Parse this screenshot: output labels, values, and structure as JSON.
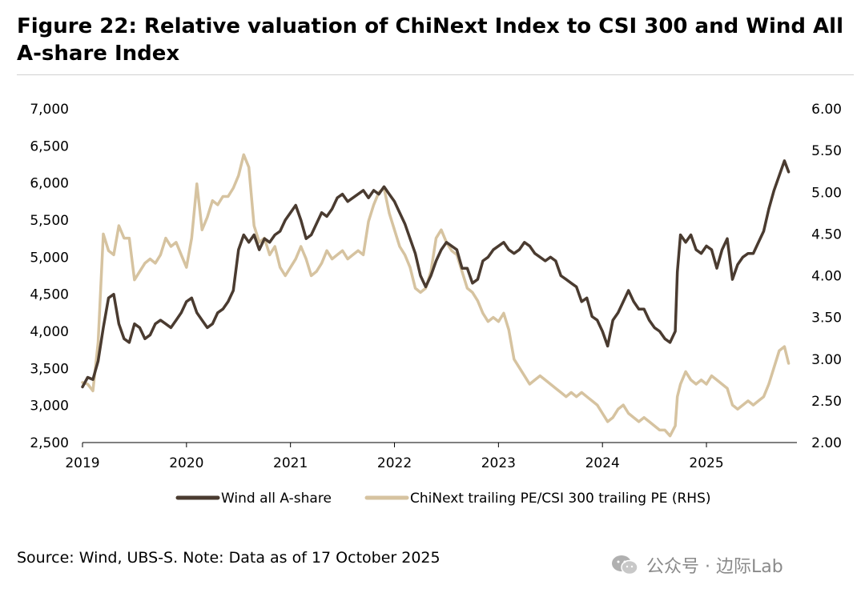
{
  "page": {
    "title": "Figure 22: Relative valuation of ChiNext Index to CSI 300 and Wind All A-share Index",
    "source": "Source: Wind, UBS-S. Note: Data as of 17 October 2025",
    "watermark": "公众号 · 边际Lab"
  },
  "chart_data": {
    "type": "line",
    "title": "Figure 22: Relative valuation of ChiNext Index to CSI 300 and Wind All A-share Index",
    "x_ticks": [
      "2019",
      "2020",
      "2021",
      "2022",
      "2023",
      "2024",
      "2025"
    ],
    "y_left": {
      "min": 2500,
      "max": 7000,
      "ticks": [
        "2,500",
        "3,000",
        "3,500",
        "4,000",
        "4,500",
        "5,000",
        "5,500",
        "6,000",
        "6,500",
        "7,000"
      ]
    },
    "y_right": {
      "min": 2.0,
      "max": 6.0,
      "ticks": [
        "2.00",
        "2.50",
        "3.00",
        "3.50",
        "4.00",
        "4.50",
        "5.00",
        "5.50",
        "6.00"
      ]
    },
    "grid": false,
    "legend_position": "bottom",
    "series": [
      {
        "name": "Wind all A-share",
        "axis": "left",
        "color": "#4a3b30",
        "points": [
          [
            2019.0,
            3250
          ],
          [
            2019.05,
            3380
          ],
          [
            2019.1,
            3350
          ],
          [
            2019.15,
            3600
          ],
          [
            2019.2,
            4050
          ],
          [
            2019.25,
            4450
          ],
          [
            2019.3,
            4500
          ],
          [
            2019.35,
            4100
          ],
          [
            2019.4,
            3900
          ],
          [
            2019.45,
            3850
          ],
          [
            2019.5,
            4100
          ],
          [
            2019.55,
            4050
          ],
          [
            2019.6,
            3900
          ],
          [
            2019.65,
            3950
          ],
          [
            2019.7,
            4100
          ],
          [
            2019.75,
            4150
          ],
          [
            2019.8,
            4100
          ],
          [
            2019.85,
            4050
          ],
          [
            2019.9,
            4150
          ],
          [
            2019.95,
            4250
          ],
          [
            2020.0,
            4400
          ],
          [
            2020.05,
            4450
          ],
          [
            2020.1,
            4250
          ],
          [
            2020.15,
            4150
          ],
          [
            2020.2,
            4050
          ],
          [
            2020.25,
            4100
          ],
          [
            2020.3,
            4250
          ],
          [
            2020.35,
            4300
          ],
          [
            2020.4,
            4400
          ],
          [
            2020.45,
            4550
          ],
          [
            2020.5,
            5100
          ],
          [
            2020.55,
            5300
          ],
          [
            2020.6,
            5200
          ],
          [
            2020.65,
            5300
          ],
          [
            2020.7,
            5100
          ],
          [
            2020.75,
            5250
          ],
          [
            2020.8,
            5200
          ],
          [
            2020.85,
            5300
          ],
          [
            2020.9,
            5350
          ],
          [
            2020.95,
            5500
          ],
          [
            2021.0,
            5600
          ],
          [
            2021.05,
            5700
          ],
          [
            2021.1,
            5500
          ],
          [
            2021.15,
            5250
          ],
          [
            2021.2,
            5300
          ],
          [
            2021.25,
            5450
          ],
          [
            2021.3,
            5600
          ],
          [
            2021.35,
            5550
          ],
          [
            2021.4,
            5650
          ],
          [
            2021.45,
            5800
          ],
          [
            2021.5,
            5850
          ],
          [
            2021.55,
            5750
          ],
          [
            2021.6,
            5800
          ],
          [
            2021.65,
            5850
          ],
          [
            2021.7,
            5900
          ],
          [
            2021.75,
            5800
          ],
          [
            2021.8,
            5900
          ],
          [
            2021.85,
            5850
          ],
          [
            2021.9,
            5950
          ],
          [
            2021.95,
            5850
          ],
          [
            2022.0,
            5750
          ],
          [
            2022.05,
            5600
          ],
          [
            2022.1,
            5450
          ],
          [
            2022.15,
            5250
          ],
          [
            2022.2,
            5050
          ],
          [
            2022.25,
            4750
          ],
          [
            2022.3,
            4600
          ],
          [
            2022.35,
            4750
          ],
          [
            2022.4,
            4950
          ],
          [
            2022.45,
            5100
          ],
          [
            2022.5,
            5200
          ],
          [
            2022.55,
            5150
          ],
          [
            2022.6,
            5100
          ],
          [
            2022.65,
            4850
          ],
          [
            2022.7,
            4850
          ],
          [
            2022.75,
            4650
          ],
          [
            2022.8,
            4700
          ],
          [
            2022.85,
            4950
          ],
          [
            2022.9,
            5000
          ],
          [
            2022.95,
            5100
          ],
          [
            2023.0,
            5150
          ],
          [
            2023.05,
            5200
          ],
          [
            2023.1,
            5100
          ],
          [
            2023.15,
            5050
          ],
          [
            2023.2,
            5100
          ],
          [
            2023.25,
            5200
          ],
          [
            2023.3,
            5150
          ],
          [
            2023.35,
            5050
          ],
          [
            2023.4,
            5000
          ],
          [
            2023.45,
            4950
          ],
          [
            2023.5,
            5000
          ],
          [
            2023.55,
            4950
          ],
          [
            2023.6,
            4750
          ],
          [
            2023.65,
            4700
          ],
          [
            2023.7,
            4650
          ],
          [
            2023.75,
            4600
          ],
          [
            2023.8,
            4400
          ],
          [
            2023.85,
            4450
          ],
          [
            2023.9,
            4200
          ],
          [
            2023.95,
            4150
          ],
          [
            2024.0,
            4000
          ],
          [
            2024.05,
            3800
          ],
          [
            2024.1,
            4150
          ],
          [
            2024.15,
            4250
          ],
          [
            2024.2,
            4400
          ],
          [
            2024.25,
            4550
          ],
          [
            2024.3,
            4400
          ],
          [
            2024.35,
            4300
          ],
          [
            2024.4,
            4300
          ],
          [
            2024.45,
            4150
          ],
          [
            2024.5,
            4050
          ],
          [
            2024.55,
            4000
          ],
          [
            2024.6,
            3900
          ],
          [
            2024.65,
            3850
          ],
          [
            2024.7,
            4000
          ],
          [
            2024.72,
            4800
          ],
          [
            2024.75,
            5300
          ],
          [
            2024.8,
            5200
          ],
          [
            2024.85,
            5300
          ],
          [
            2024.9,
            5100
          ],
          [
            2024.95,
            5050
          ],
          [
            2025.0,
            5150
          ],
          [
            2025.05,
            5100
          ],
          [
            2025.1,
            4850
          ],
          [
            2025.15,
            5100
          ],
          [
            2025.2,
            5250
          ],
          [
            2025.25,
            4700
          ],
          [
            2025.3,
            4900
          ],
          [
            2025.35,
            5000
          ],
          [
            2025.4,
            5050
          ],
          [
            2025.45,
            5050
          ],
          [
            2025.5,
            5200
          ],
          [
            2025.55,
            5350
          ],
          [
            2025.6,
            5650
          ],
          [
            2025.65,
            5900
          ],
          [
            2025.7,
            6100
          ],
          [
            2025.75,
            6300
          ],
          [
            2025.79,
            6150
          ]
        ]
      },
      {
        "name": "ChiNext trailing PE/CSI 300 trailing PE (RHS)",
        "axis": "right",
        "color": "#d6c3a0",
        "points": [
          [
            2019.0,
            2.72
          ],
          [
            2019.05,
            2.7
          ],
          [
            2019.1,
            2.62
          ],
          [
            2019.15,
            3.2
          ],
          [
            2019.2,
            4.5
          ],
          [
            2019.25,
            4.3
          ],
          [
            2019.3,
            4.25
          ],
          [
            2019.35,
            4.6
          ],
          [
            2019.4,
            4.45
          ],
          [
            2019.45,
            4.45
          ],
          [
            2019.5,
            3.95
          ],
          [
            2019.55,
            4.05
          ],
          [
            2019.6,
            4.15
          ],
          [
            2019.65,
            4.2
          ],
          [
            2019.7,
            4.15
          ],
          [
            2019.75,
            4.25
          ],
          [
            2019.8,
            4.45
          ],
          [
            2019.85,
            4.35
          ],
          [
            2019.9,
            4.4
          ],
          [
            2019.95,
            4.25
          ],
          [
            2020.0,
            4.1
          ],
          [
            2020.05,
            4.45
          ],
          [
            2020.1,
            5.1
          ],
          [
            2020.15,
            4.55
          ],
          [
            2020.2,
            4.7
          ],
          [
            2020.25,
            4.9
          ],
          [
            2020.3,
            4.85
          ],
          [
            2020.35,
            4.95
          ],
          [
            2020.4,
            4.95
          ],
          [
            2020.45,
            5.05
          ],
          [
            2020.5,
            5.2
          ],
          [
            2020.55,
            5.45
          ],
          [
            2020.6,
            5.3
          ],
          [
            2020.65,
            4.6
          ],
          [
            2020.7,
            4.4
          ],
          [
            2020.75,
            4.45
          ],
          [
            2020.8,
            4.25
          ],
          [
            2020.85,
            4.35
          ],
          [
            2020.9,
            4.1
          ],
          [
            2020.95,
            4.0
          ],
          [
            2021.0,
            4.1
          ],
          [
            2021.05,
            4.2
          ],
          [
            2021.1,
            4.35
          ],
          [
            2021.15,
            4.2
          ],
          [
            2021.2,
            4.0
          ],
          [
            2021.25,
            4.05
          ],
          [
            2021.3,
            4.15
          ],
          [
            2021.35,
            4.3
          ],
          [
            2021.4,
            4.2
          ],
          [
            2021.45,
            4.25
          ],
          [
            2021.5,
            4.3
          ],
          [
            2021.55,
            4.2
          ],
          [
            2021.6,
            4.25
          ],
          [
            2021.65,
            4.3
          ],
          [
            2021.7,
            4.25
          ],
          [
            2021.75,
            4.65
          ],
          [
            2021.8,
            4.85
          ],
          [
            2021.85,
            5.0
          ],
          [
            2021.9,
            5.05
          ],
          [
            2021.95,
            4.75
          ],
          [
            2022.0,
            4.55
          ],
          [
            2022.05,
            4.35
          ],
          [
            2022.1,
            4.25
          ],
          [
            2022.15,
            4.1
          ],
          [
            2022.2,
            3.85
          ],
          [
            2022.25,
            3.8
          ],
          [
            2022.3,
            3.85
          ],
          [
            2022.35,
            4.05
          ],
          [
            2022.4,
            4.45
          ],
          [
            2022.45,
            4.55
          ],
          [
            2022.5,
            4.4
          ],
          [
            2022.55,
            4.3
          ],
          [
            2022.6,
            4.25
          ],
          [
            2022.65,
            4.05
          ],
          [
            2022.7,
            3.85
          ],
          [
            2022.75,
            3.8
          ],
          [
            2022.8,
            3.7
          ],
          [
            2022.85,
            3.55
          ],
          [
            2022.9,
            3.45
          ],
          [
            2022.95,
            3.5
          ],
          [
            2023.0,
            3.45
          ],
          [
            2023.05,
            3.55
          ],
          [
            2023.1,
            3.35
          ],
          [
            2023.15,
            3.0
          ],
          [
            2023.2,
            2.9
          ],
          [
            2023.25,
            2.8
          ],
          [
            2023.3,
            2.7
          ],
          [
            2023.35,
            2.75
          ],
          [
            2023.4,
            2.8
          ],
          [
            2023.45,
            2.75
          ],
          [
            2023.5,
            2.7
          ],
          [
            2023.55,
            2.65
          ],
          [
            2023.6,
            2.6
          ],
          [
            2023.65,
            2.55
          ],
          [
            2023.7,
            2.6
          ],
          [
            2023.75,
            2.55
          ],
          [
            2023.8,
            2.6
          ],
          [
            2023.85,
            2.55
          ],
          [
            2023.9,
            2.5
          ],
          [
            2023.95,
            2.45
          ],
          [
            2024.0,
            2.35
          ],
          [
            2024.05,
            2.25
          ],
          [
            2024.1,
            2.3
          ],
          [
            2024.15,
            2.4
          ],
          [
            2024.2,
            2.45
          ],
          [
            2024.25,
            2.35
          ],
          [
            2024.3,
            2.3
          ],
          [
            2024.35,
            2.25
          ],
          [
            2024.4,
            2.3
          ],
          [
            2024.45,
            2.25
          ],
          [
            2024.5,
            2.2
          ],
          [
            2024.55,
            2.15
          ],
          [
            2024.6,
            2.15
          ],
          [
            2024.65,
            2.08
          ],
          [
            2024.7,
            2.2
          ],
          [
            2024.72,
            2.55
          ],
          [
            2024.75,
            2.7
          ],
          [
            2024.8,
            2.85
          ],
          [
            2024.85,
            2.75
          ],
          [
            2024.9,
            2.7
          ],
          [
            2024.95,
            2.75
          ],
          [
            2025.0,
            2.7
          ],
          [
            2025.05,
            2.8
          ],
          [
            2025.1,
            2.75
          ],
          [
            2025.15,
            2.7
          ],
          [
            2025.2,
            2.65
          ],
          [
            2025.25,
            2.45
          ],
          [
            2025.3,
            2.4
          ],
          [
            2025.35,
            2.45
          ],
          [
            2025.4,
            2.5
          ],
          [
            2025.45,
            2.45
          ],
          [
            2025.5,
            2.5
          ],
          [
            2025.55,
            2.55
          ],
          [
            2025.6,
            2.7
          ],
          [
            2025.65,
            2.9
          ],
          [
            2025.7,
            3.1
          ],
          [
            2025.75,
            3.15
          ],
          [
            2025.79,
            2.95
          ]
        ]
      }
    ]
  }
}
